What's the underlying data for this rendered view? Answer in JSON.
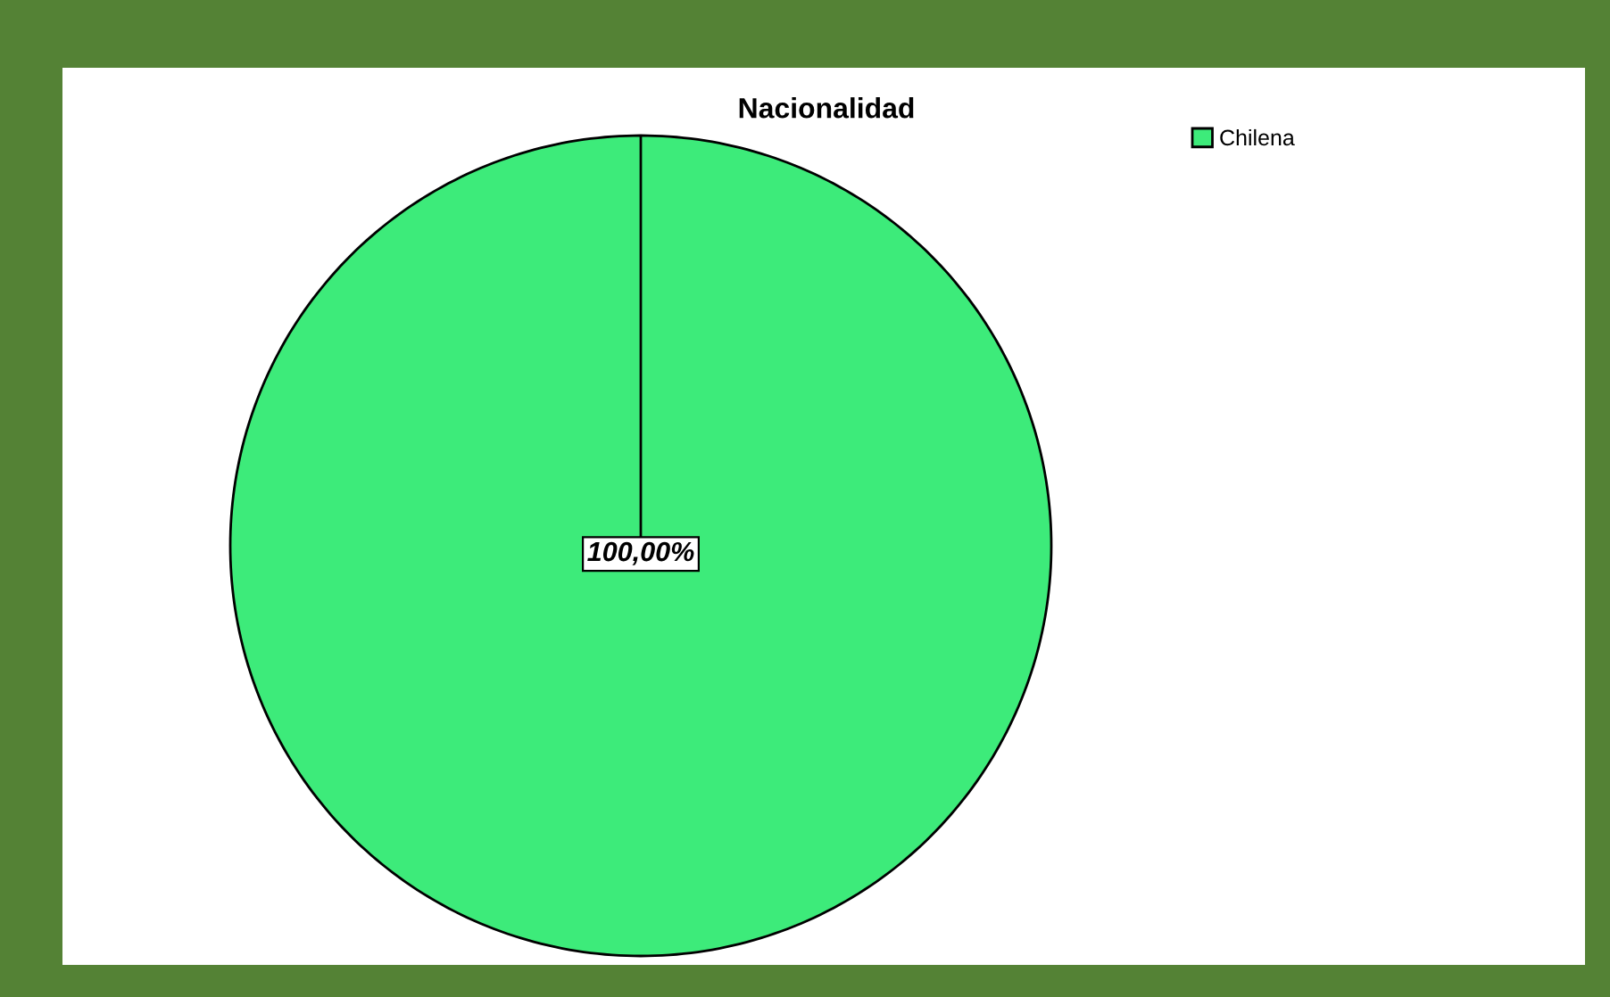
{
  "chart_data": {
    "type": "pie",
    "title": "Nacionalidad",
    "categories": [
      "Chilena"
    ],
    "values": [
      100
    ],
    "colors": [
      "#3deb7a"
    ],
    "value_labels": [
      "100,00%"
    ],
    "legend": "top right"
  }
}
